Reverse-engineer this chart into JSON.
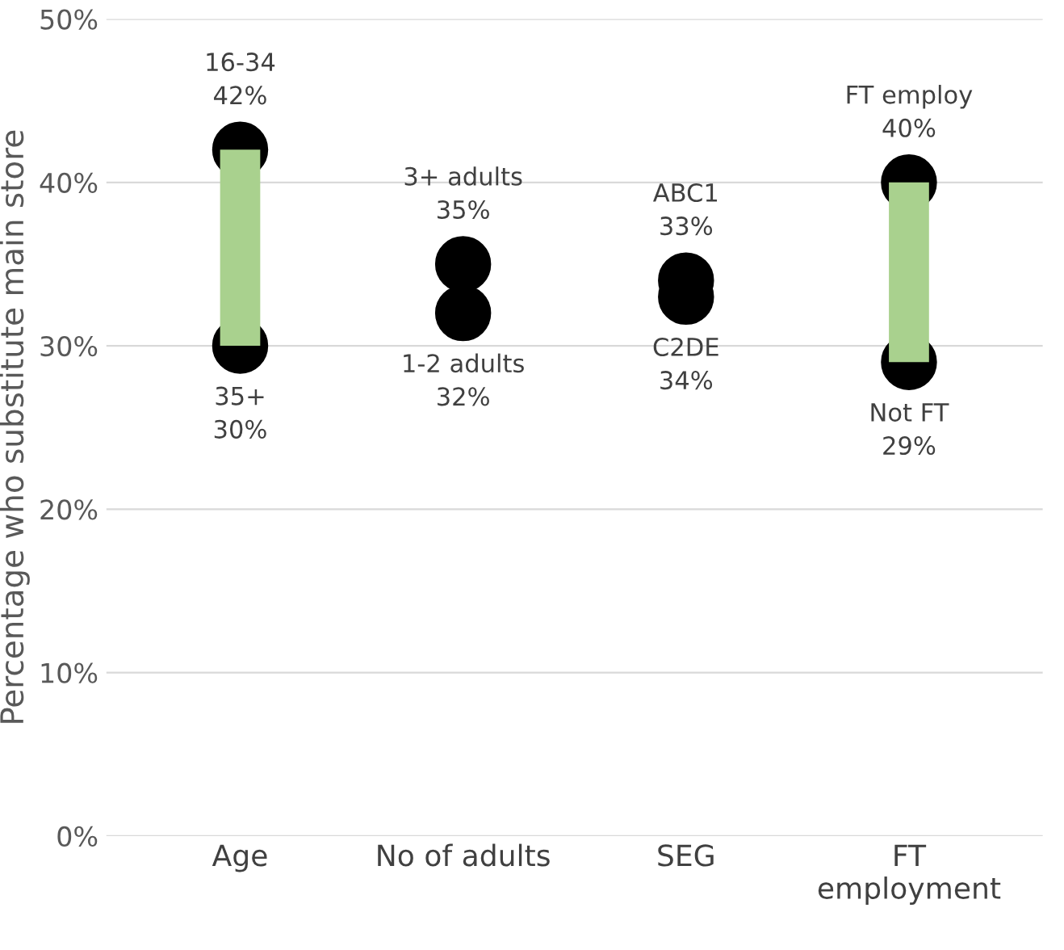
{
  "chart_data": {
    "type": "scatter",
    "ylabel": "Percentage who substitute main store",
    "categories": [
      "Age",
      "No of adults",
      "SEG",
      "FT\nemployment"
    ],
    "ylim": [
      0,
      50
    ],
    "yticks": [
      {
        "value": 0,
        "label": "0%"
      },
      {
        "value": 10,
        "label": "10%"
      },
      {
        "value": 20,
        "label": "20%"
      },
      {
        "value": 30,
        "label": "30%"
      },
      {
        "value": 40,
        "label": "40%"
      },
      {
        "value": 50,
        "label": "50%"
      }
    ],
    "grid": "y",
    "legend": false,
    "marker": "circle",
    "series": [
      {
        "type": "bar",
        "color": "#a9d18e",
        "base": [
          30,
          null,
          null,
          29
        ],
        "values": [
          12,
          null,
          null,
          11
        ]
      },
      {
        "color": "#000000",
        "values": [
          42,
          35,
          33,
          40
        ],
        "value_labels": [
          "16-34\n42%",
          "3+ adults\n35%",
          "ABC1\n33%",
          "FT employ\n40%"
        ]
      },
      {
        "color": "#000000",
        "values": [
          30,
          32,
          34,
          29
        ],
        "value_labels": [
          "35+\n30%",
          "1-2 adults\n32%",
          "C2DE\n34%",
          "Not FT\n29%"
        ]
      }
    ]
  }
}
